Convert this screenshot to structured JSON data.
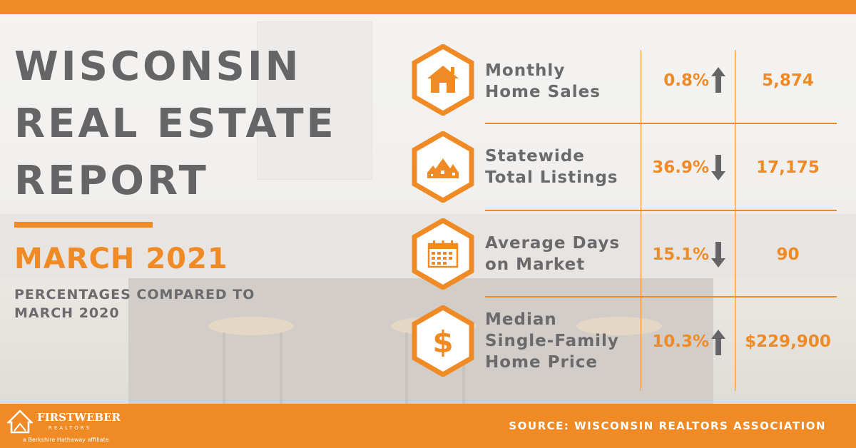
{
  "header": {
    "title_lines": [
      "WISCONSIN",
      "REAL ESTATE",
      "REPORT"
    ],
    "month": "MARCH 2021",
    "comparison_note": "PERCENTAGES COMPARED TO MARCH 2020"
  },
  "colors": {
    "accent": "#f08a24",
    "title_gray": "#656568",
    "background": "#f2f1ef"
  },
  "metrics": [
    {
      "label_lines": [
        "Monthly",
        "Home Sales"
      ],
      "percent": "0.8%",
      "direction": "up",
      "value": "5,874",
      "icon": "house-icon"
    },
    {
      "label_lines": [
        "Statewide",
        "Total Listings"
      ],
      "percent": "36.9%",
      "direction": "down",
      "value": "17,175",
      "icon": "neighborhood-icon"
    },
    {
      "label_lines": [
        "Average Days",
        "on Market"
      ],
      "percent": "15.1%",
      "direction": "down",
      "value": "90",
      "icon": "calendar-icon"
    },
    {
      "label_lines": [
        "Median",
        "Single-Family",
        "Home Price"
      ],
      "percent": "10.3%",
      "direction": "up",
      "value": "$229,900",
      "icon": "dollar-icon"
    }
  ],
  "footer": {
    "brand": "FIRSTWEBER",
    "brand_sub": "REALTORS",
    "affiliate": "a Berkshire Hathaway affiliate",
    "source": "SOURCE: WISCONSIN REALTORS ASSOCIATION"
  }
}
